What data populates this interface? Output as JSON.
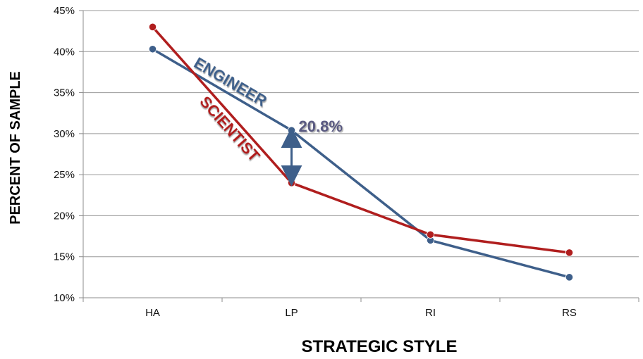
{
  "chart_data": {
    "type": "line",
    "categories": [
      "HA",
      "LP",
      "RI",
      "RS"
    ],
    "series": [
      {
        "name": "ENGINEER",
        "values": [
          40.3,
          30.4,
          17.0,
          12.5
        ],
        "color": "#3E5F8A"
      },
      {
        "name": "SCIENTIST",
        "values": [
          43.0,
          24.0,
          17.7,
          15.5
        ],
        "color": "#B01E1E"
      }
    ],
    "xlabel": "STRATEGIC STYLE",
    "ylabel": "PERCENT OF SAMPLE",
    "ylim": [
      10,
      45
    ],
    "yticks": [
      "10%",
      "15%",
      "20%",
      "25%",
      "30%",
      "35%",
      "40%",
      "45%"
    ],
    "grid": true,
    "annotations": [
      {
        "text": "20.8%",
        "category": "LP",
        "color": "#5A5A82"
      }
    ]
  }
}
